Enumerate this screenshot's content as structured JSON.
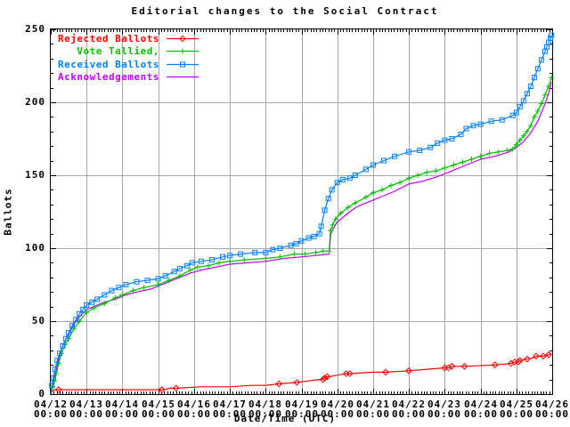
{
  "chart": {
    "title": "Editorial changes to the Social Contract",
    "xlabel": "Date/Time (UTC)",
    "ylabel": "Ballots"
  },
  "axes": {
    "y_ticks": [
      "0",
      "50",
      "100",
      "150",
      "200",
      "250"
    ],
    "x_ticks": [
      {
        "date": "04/12",
        "time": "00:00"
      },
      {
        "date": "04/13",
        "time": "00:00"
      },
      {
        "date": "04/14",
        "time": "00:00"
      },
      {
        "date": "04/15",
        "time": "00:00"
      },
      {
        "date": "04/16",
        "time": "00:00"
      },
      {
        "date": "04/17",
        "time": "00:00"
      },
      {
        "date": "04/18",
        "time": "00:00"
      },
      {
        "date": "04/19",
        "time": "00:00"
      },
      {
        "date": "04/20",
        "time": "00:00"
      },
      {
        "date": "04/21",
        "time": "00:00"
      },
      {
        "date": "04/22",
        "time": "00:00"
      },
      {
        "date": "04/23",
        "time": "00:00"
      },
      {
        "date": "04/24",
        "time": "00:00"
      },
      {
        "date": "04/25",
        "time": "00:00"
      },
      {
        "date": "04/26",
        "time": "00:00"
      }
    ]
  },
  "colors": {
    "background": "#ffffff",
    "border": "#000000",
    "grid": "#a8a8a8",
    "rejected": "#ff0000",
    "tallied": "#00c000",
    "received": "#0080ff",
    "acknowledgements": "#c000ff"
  },
  "legend": {
    "items": [
      {
        "label": "Rejected Ballots",
        "series": "rejected"
      },
      {
        "label": "Vote Tallied,",
        "series": "tallied"
      },
      {
        "label": "Received Ballots",
        "series": "received"
      },
      {
        "label": "Acknowledgements",
        "series": "acknowledgements"
      }
    ]
  },
  "chart_data": {
    "type": "line",
    "title": "Editorial changes to the Social Contract",
    "xlabel": "Date/Time (UTC)",
    "ylabel": "Ballots",
    "x_unit": "days since 04/12 00:00 UTC",
    "xlim": [
      0,
      14
    ],
    "ylim": [
      0,
      250
    ],
    "grid": true,
    "legend_position": "top-left",
    "x_tick_step_days": 1,
    "x_minor_tick_step_days": 0.0833,
    "y_tick_step": 50,
    "y_minor_tick_step": 10,
    "series": [
      {
        "name": "Rejected Ballots",
        "key": "rejected",
        "color": "#ff0000",
        "marker": "diamond",
        "points": [
          [
            0,
            0
          ],
          [
            0.04,
            2
          ],
          [
            0.1,
            3
          ],
          [
            0.22,
            3
          ],
          [
            1.0,
            3
          ],
          [
            2.0,
            3
          ],
          [
            3.1,
            3
          ],
          [
            3.35,
            4
          ],
          [
            3.5,
            4
          ],
          [
            4.2,
            5
          ],
          [
            5.0,
            5
          ],
          [
            5.6,
            6
          ],
          [
            6.0,
            6
          ],
          [
            6.37,
            7
          ],
          [
            6.87,
            8
          ],
          [
            7.2,
            9
          ],
          [
            7.5,
            10
          ],
          [
            7.6,
            10
          ],
          [
            7.65,
            11
          ],
          [
            7.72,
            12
          ],
          [
            7.8,
            12
          ],
          [
            8.0,
            13
          ],
          [
            8.25,
            14
          ],
          [
            8.35,
            14
          ],
          [
            9.0,
            15
          ],
          [
            9.35,
            15
          ],
          [
            10.0,
            16
          ],
          [
            10.5,
            17
          ],
          [
            11.0,
            18
          ],
          [
            11.1,
            18
          ],
          [
            11.2,
            19
          ],
          [
            11.55,
            19
          ],
          [
            12.4,
            20
          ],
          [
            12.85,
            21
          ],
          [
            12.95,
            22
          ],
          [
            13.05,
            22
          ],
          [
            13.1,
            23
          ],
          [
            13.3,
            24
          ],
          [
            13.5,
            25
          ],
          [
            13.55,
            26
          ],
          [
            13.75,
            26
          ],
          [
            13.9,
            27
          ],
          [
            13.98,
            28
          ]
        ],
        "marker_points": [
          [
            0.22,
            3
          ],
          [
            3.1,
            3
          ],
          [
            3.5,
            4
          ],
          [
            6.37,
            7
          ],
          [
            6.87,
            8
          ],
          [
            7.6,
            10
          ],
          [
            7.65,
            11
          ],
          [
            7.72,
            12
          ],
          [
            8.25,
            14
          ],
          [
            8.35,
            14
          ],
          [
            9.35,
            15
          ],
          [
            10.0,
            16
          ],
          [
            11.0,
            18
          ],
          [
            11.1,
            18
          ],
          [
            11.2,
            19
          ],
          [
            11.55,
            19
          ],
          [
            12.4,
            20
          ],
          [
            12.85,
            21
          ],
          [
            12.95,
            22
          ],
          [
            13.05,
            22
          ],
          [
            13.1,
            23
          ],
          [
            13.3,
            24
          ],
          [
            13.55,
            26
          ],
          [
            13.75,
            26
          ],
          [
            13.9,
            27
          ]
        ]
      },
      {
        "name": "Vote Tallied,",
        "key": "tallied",
        "color": "#00c000",
        "marker": "plus",
        "points": [
          [
            0,
            0
          ],
          [
            0.05,
            5
          ],
          [
            0.1,
            9
          ],
          [
            0.15,
            14
          ],
          [
            0.22,
            21
          ],
          [
            0.3,
            28
          ],
          [
            0.4,
            34
          ],
          [
            0.5,
            38
          ],
          [
            0.65,
            45
          ],
          [
            0.8,
            50
          ],
          [
            1.0,
            56
          ],
          [
            1.2,
            59
          ],
          [
            1.5,
            62
          ],
          [
            1.8,
            66
          ],
          [
            2.0,
            68
          ],
          [
            2.3,
            71
          ],
          [
            2.6,
            73
          ],
          [
            3.0,
            75
          ],
          [
            3.3,
            78
          ],
          [
            3.6,
            81
          ],
          [
            3.9,
            85
          ],
          [
            4.1,
            87
          ],
          [
            4.4,
            88
          ],
          [
            4.7,
            90
          ],
          [
            5.0,
            91
          ],
          [
            5.4,
            92
          ],
          [
            6.0,
            93
          ],
          [
            6.4,
            94
          ],
          [
            6.8,
            96
          ],
          [
            7.1,
            96
          ],
          [
            7.4,
            97
          ],
          [
            7.6,
            98
          ],
          [
            7.77,
            98
          ],
          [
            7.81,
            112
          ],
          [
            7.87,
            116
          ],
          [
            7.95,
            120
          ],
          [
            8.1,
            124
          ],
          [
            8.3,
            128
          ],
          [
            8.5,
            131
          ],
          [
            8.8,
            135
          ],
          [
            9.0,
            138
          ],
          [
            9.25,
            140
          ],
          [
            9.5,
            143
          ],
          [
            9.75,
            145
          ],
          [
            10.0,
            148
          ],
          [
            10.25,
            150
          ],
          [
            10.5,
            152
          ],
          [
            10.75,
            153
          ],
          [
            11.0,
            155
          ],
          [
            11.25,
            157
          ],
          [
            11.5,
            159
          ],
          [
            11.75,
            161
          ],
          [
            12.0,
            163
          ],
          [
            12.25,
            165
          ],
          [
            12.5,
            166
          ],
          [
            12.75,
            167
          ],
          [
            12.9,
            168
          ],
          [
            13.0,
            171
          ],
          [
            13.1,
            174
          ],
          [
            13.2,
            177
          ],
          [
            13.3,
            180
          ],
          [
            13.4,
            184
          ],
          [
            13.5,
            190
          ],
          [
            13.6,
            194
          ],
          [
            13.7,
            199
          ],
          [
            13.8,
            205
          ],
          [
            13.9,
            211
          ],
          [
            13.98,
            217
          ]
        ]
      },
      {
        "name": "Received Ballots",
        "key": "received",
        "color": "#0080ff",
        "marker": "square",
        "points": [
          [
            0,
            0
          ],
          [
            0.03,
            6
          ],
          [
            0.07,
            11
          ],
          [
            0.12,
            17
          ],
          [
            0.18,
            23
          ],
          [
            0.25,
            28
          ],
          [
            0.33,
            33
          ],
          [
            0.42,
            38
          ],
          [
            0.5,
            42
          ],
          [
            0.6,
            47
          ],
          [
            0.7,
            51
          ],
          [
            0.8,
            55
          ],
          [
            0.9,
            58
          ],
          [
            1.0,
            61
          ],
          [
            1.15,
            63
          ],
          [
            1.3,
            65
          ],
          [
            1.5,
            68
          ],
          [
            1.7,
            71
          ],
          [
            1.9,
            73
          ],
          [
            2.1,
            75
          ],
          [
            2.4,
            77
          ],
          [
            2.7,
            78
          ],
          [
            3.0,
            79
          ],
          [
            3.2,
            81
          ],
          [
            3.45,
            84
          ],
          [
            3.6,
            86
          ],
          [
            3.8,
            88
          ],
          [
            3.95,
            90
          ],
          [
            4.2,
            91
          ],
          [
            4.5,
            92
          ],
          [
            4.8,
            94
          ],
          [
            5.0,
            95
          ],
          [
            5.3,
            96
          ],
          [
            5.7,
            97
          ],
          [
            6.0,
            97
          ],
          [
            6.2,
            99
          ],
          [
            6.4,
            100
          ],
          [
            6.7,
            102
          ],
          [
            6.85,
            103
          ],
          [
            7.0,
            105
          ],
          [
            7.2,
            107
          ],
          [
            7.35,
            108
          ],
          [
            7.5,
            110
          ],
          [
            7.55,
            115
          ],
          [
            7.65,
            126
          ],
          [
            7.75,
            134
          ],
          [
            7.85,
            140
          ],
          [
            8.0,
            145
          ],
          [
            8.15,
            147
          ],
          [
            8.35,
            148
          ],
          [
            8.5,
            150
          ],
          [
            8.8,
            154
          ],
          [
            9.0,
            157
          ],
          [
            9.3,
            160
          ],
          [
            9.6,
            163
          ],
          [
            10.0,
            166
          ],
          [
            10.3,
            167
          ],
          [
            10.6,
            169
          ],
          [
            10.8,
            172
          ],
          [
            11.0,
            174
          ],
          [
            11.2,
            175
          ],
          [
            11.45,
            178
          ],
          [
            11.6,
            182
          ],
          [
            11.8,
            184
          ],
          [
            12.0,
            185
          ],
          [
            12.3,
            187
          ],
          [
            12.6,
            188
          ],
          [
            12.9,
            191
          ],
          [
            13.0,
            193
          ],
          [
            13.1,
            197
          ],
          [
            13.2,
            201
          ],
          [
            13.3,
            206
          ],
          [
            13.4,
            211
          ],
          [
            13.5,
            217
          ],
          [
            13.6,
            223
          ],
          [
            13.7,
            229
          ],
          [
            13.8,
            235
          ],
          [
            13.85,
            238
          ],
          [
            13.9,
            241
          ],
          [
            13.95,
            244
          ],
          [
            13.98,
            246
          ]
        ]
      },
      {
        "name": "Acknowledgements",
        "key": "acknowledgements",
        "color": "#c000ff",
        "marker": "none",
        "points": [
          [
            0,
            0
          ],
          [
            0.05,
            6
          ],
          [
            0.1,
            11
          ],
          [
            0.15,
            16
          ],
          [
            0.22,
            24
          ],
          [
            0.3,
            31
          ],
          [
            0.4,
            37
          ],
          [
            0.5,
            41
          ],
          [
            0.65,
            48
          ],
          [
            0.8,
            53
          ],
          [
            1.0,
            58
          ],
          [
            1.2,
            60
          ],
          [
            1.5,
            63
          ],
          [
            1.8,
            65
          ],
          [
            2.1,
            68
          ],
          [
            2.4,
            70
          ],
          [
            2.8,
            72
          ],
          [
            3.0,
            74
          ],
          [
            3.3,
            77
          ],
          [
            3.6,
            80
          ],
          [
            3.9,
            83
          ],
          [
            4.2,
            85
          ],
          [
            4.6,
            87
          ],
          [
            5.0,
            89
          ],
          [
            5.5,
            90
          ],
          [
            6.0,
            91
          ],
          [
            6.5,
            93
          ],
          [
            7.0,
            94
          ],
          [
            7.4,
            95
          ],
          [
            7.77,
            96
          ],
          [
            7.82,
            110
          ],
          [
            7.9,
            114
          ],
          [
            8.0,
            118
          ],
          [
            8.2,
            122
          ],
          [
            8.4,
            126
          ],
          [
            8.6,
            129
          ],
          [
            9.0,
            133
          ],
          [
            9.3,
            136
          ],
          [
            9.6,
            139
          ],
          [
            10.0,
            144
          ],
          [
            10.4,
            146
          ],
          [
            10.8,
            149
          ],
          [
            11.2,
            153
          ],
          [
            11.6,
            157
          ],
          [
            12.0,
            161
          ],
          [
            12.4,
            163
          ],
          [
            12.8,
            166
          ],
          [
            13.0,
            169
          ],
          [
            13.2,
            173
          ],
          [
            13.4,
            179
          ],
          [
            13.6,
            187
          ],
          [
            13.8,
            199
          ],
          [
            13.9,
            206
          ],
          [
            13.98,
            214
          ]
        ]
      }
    ]
  }
}
